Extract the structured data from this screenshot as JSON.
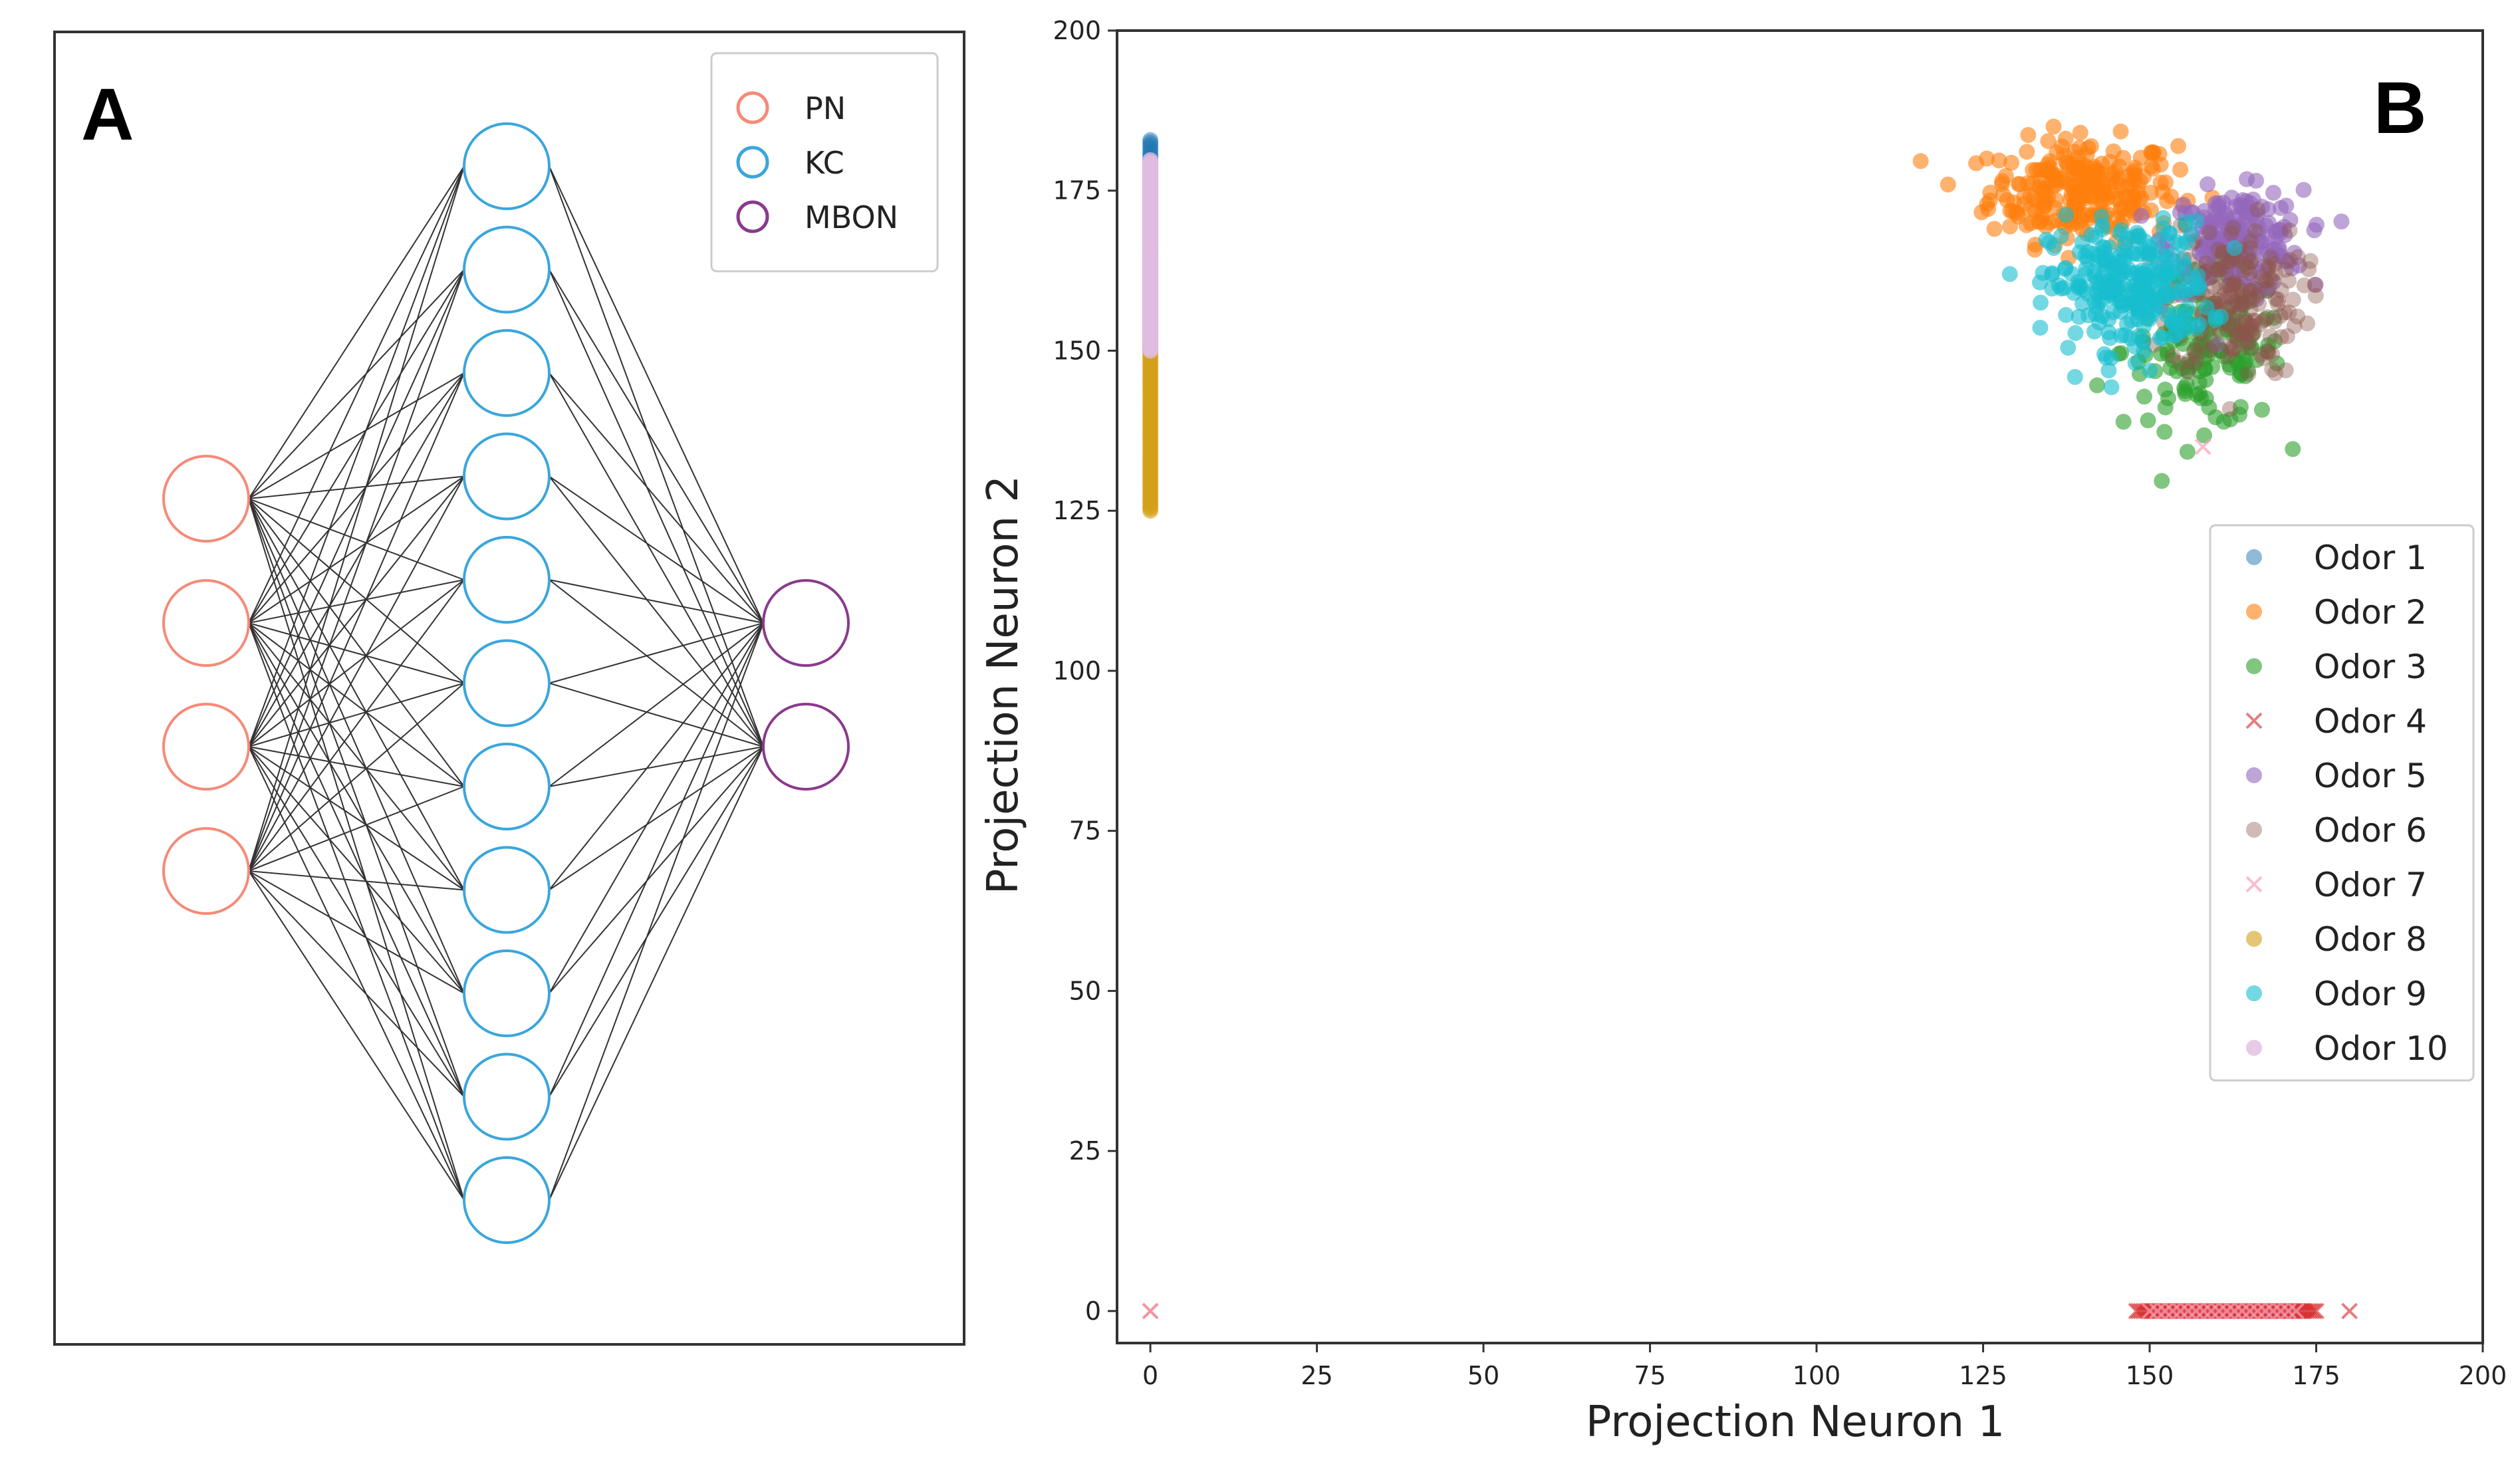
{
  "panel_a": {
    "letter": "A",
    "legend": [
      {
        "label": "PN",
        "color": "#f58a78"
      },
      {
        "label": "KC",
        "color": "#3aa6dc"
      },
      {
        "label": "MBON",
        "color": "#8a3a8c"
      }
    ],
    "layers": [
      {
        "name": "PN",
        "count": 4,
        "color": "#f58a78"
      },
      {
        "name": "KC",
        "count": 11,
        "color": "#3aa6dc"
      },
      {
        "name": "MBON",
        "count": 2,
        "color": "#8a3a8c"
      }
    ],
    "connections": "fully-connected",
    "edge_color": "#333333"
  },
  "panel_b": {
    "letter": "B"
  },
  "chart_data": {
    "type": "scatter",
    "title": "",
    "xlabel": "Projection Neuron 1",
    "ylabel": "Projection Neuron 2",
    "xlim": [
      -5,
      200
    ],
    "ylim": [
      -5,
      200
    ],
    "xticks": [
      0,
      25,
      50,
      75,
      100,
      125,
      150,
      175,
      200
    ],
    "yticks": [
      0,
      25,
      50,
      75,
      100,
      125,
      150,
      175,
      200
    ],
    "grid": false,
    "legend_position": "right",
    "series": [
      {
        "name": "Odor 1",
        "marker": "o",
        "color": "#1f77b4",
        "alpha": 0.5,
        "cluster": {
          "x": [
            0,
            0
          ],
          "y": [
            150,
            183
          ]
        }
      },
      {
        "name": "Odor 2",
        "marker": "o",
        "color": "#ff7f0e",
        "alpha": 0.6,
        "cluster": {
          "cx": 140,
          "cy": 175,
          "sx": 7,
          "sy": 4,
          "n": 260
        }
      },
      {
        "name": "Odor 3",
        "marker": "o",
        "color": "#2ca02c",
        "alpha": 0.6,
        "cluster": {
          "cx": 158,
          "cy": 150,
          "sx": 6,
          "sy": 6,
          "n": 160
        }
      },
      {
        "name": "Odor 4",
        "marker": "x",
        "color": "#d62728",
        "alpha": 0.6,
        "points": [
          {
            "x": 0,
            "y": 0
          },
          {
            "x": 180,
            "y": 0
          }
        ],
        "range": {
          "x": [
            148,
            175
          ],
          "y": 0,
          "n": 80
        }
      },
      {
        "name": "Odor 5",
        "marker": "o",
        "color": "#9467bd",
        "alpha": 0.6,
        "cluster": {
          "cx": 163,
          "cy": 167,
          "sx": 5,
          "sy": 4,
          "n": 200
        }
      },
      {
        "name": "Odor 6",
        "marker": "o",
        "color": "#8c564b",
        "alpha": 0.4,
        "cluster": {
          "cx": 163,
          "cy": 158,
          "sx": 5,
          "sy": 6,
          "n": 180
        }
      },
      {
        "name": "Odor 7",
        "marker": "x",
        "color": "#f7a1b5",
        "alpha": 0.7,
        "points": [
          {
            "x": 0,
            "y": 0
          },
          {
            "x": 158,
            "y": 135
          }
        ],
        "range": {
          "x": [
            150,
            172
          ],
          "y": 0,
          "n": 20
        }
      },
      {
        "name": "Odor 8",
        "marker": "o",
        "color": "#d4a017",
        "alpha": 0.6,
        "cluster": {
          "x": [
            0,
            0
          ],
          "y": [
            125,
            152
          ]
        }
      },
      {
        "name": "Odor 9",
        "marker": "o",
        "color": "#17becf",
        "alpha": 0.6,
        "cluster": {
          "cx": 147,
          "cy": 160,
          "sx": 6,
          "sy": 5,
          "n": 260
        }
      },
      {
        "name": "Odor 10",
        "marker": "o",
        "color": "#e0bde0",
        "alpha": 0.8,
        "cluster": {
          "x": [
            0,
            0
          ],
          "y": [
            150,
            180
          ]
        }
      }
    ]
  }
}
